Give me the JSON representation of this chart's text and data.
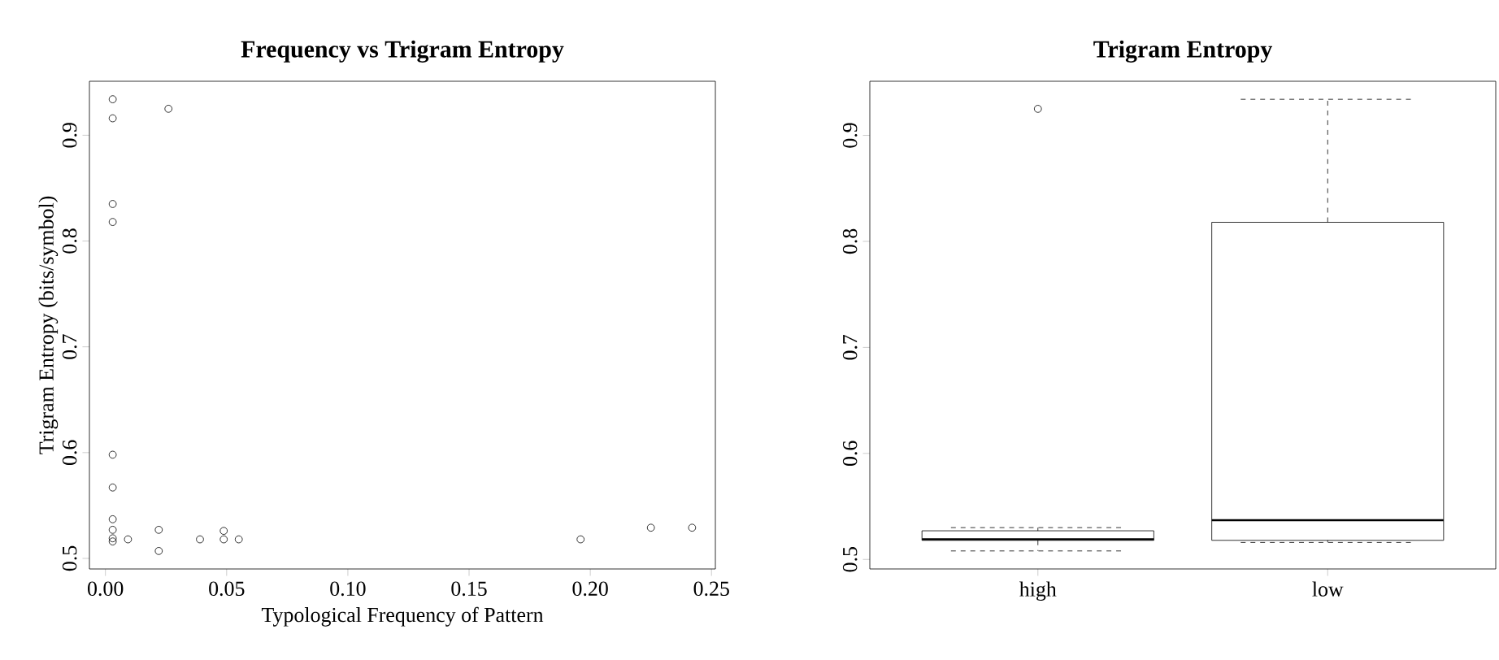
{
  "chart_data": [
    {
      "type": "scatter",
      "title": "Frequency vs Trigram Entropy",
      "xlabel": "Typological Frequency of Pattern",
      "ylabel": "Trigram Entropy (bits/symbol)",
      "x": [
        0.003,
        0.003,
        0.003,
        0.003,
        0.003,
        0.003,
        0.003,
        0.003,
        0.003,
        0.003,
        0.0093,
        0.022,
        0.022,
        0.026,
        0.039,
        0.0488,
        0.0488,
        0.055,
        0.196,
        0.225,
        0.242
      ],
      "values": [
        0.934,
        0.916,
        0.835,
        0.818,
        0.598,
        0.567,
        0.537,
        0.527,
        0.519,
        0.516,
        0.518,
        0.527,
        0.507,
        0.925,
        0.518,
        0.526,
        0.518,
        0.518,
        0.518,
        0.529,
        0.529
      ],
      "color": "#000000",
      "marker": "circle",
      "xlim": [
        -0.0066,
        0.2516
      ],
      "ylim": [
        0.49,
        0.951
      ],
      "xticks": [
        {
          "value": 0,
          "label": "0.00"
        },
        {
          "value": 0.05,
          "label": "0.05"
        },
        {
          "value": 0.1,
          "label": "0.10"
        },
        {
          "value": 0.15,
          "label": "0.15"
        },
        {
          "value": 0.2,
          "label": "0.20"
        },
        {
          "value": 0.25,
          "label": "0.25"
        }
      ],
      "yticks": [
        0.5,
        0.6,
        0.7,
        0.8,
        0.9
      ]
    },
    {
      "type": "box",
      "title": "Trigram Entropy",
      "categories": [
        "high",
        "low"
      ],
      "boxes": [
        {
          "low": 0.508,
          "q1": 0.518,
          "median": 0.519,
          "q3": 0.527,
          "high": 0.53,
          "outliers": [
            0.925
          ]
        },
        {
          "low": 0.516,
          "q1": 0.518,
          "median": 0.537,
          "q3": 0.818,
          "high": 0.934
        }
      ],
      "ylim": [
        0.491,
        0.951
      ],
      "yticks": [
        0.5,
        0.6,
        0.7,
        0.8,
        0.9
      ]
    }
  ]
}
